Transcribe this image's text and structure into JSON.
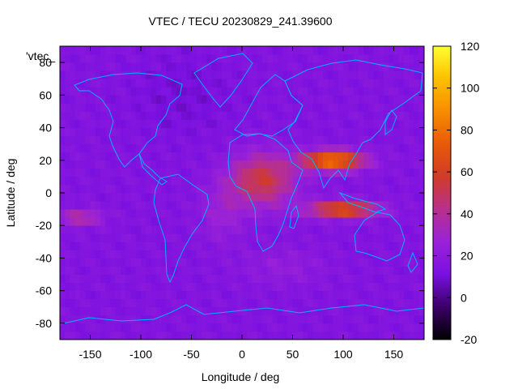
{
  "chart_data": {
    "type": "heatmap",
    "title": "VTEC / TECU 20230829_241.39600",
    "xlabel": "Longitude / deg",
    "ylabel": "Latitude / deg",
    "series_label": "'vtec_",
    "xlim": [
      -180,
      180
    ],
    "ylim": [
      -90,
      90
    ],
    "x_ticks": [
      -150,
      -100,
      -50,
      0,
      50,
      100,
      150
    ],
    "y_ticks": [
      -80,
      -60,
      -40,
      -20,
      0,
      20,
      40,
      60,
      80
    ],
    "colorbar": {
      "range": [
        -20,
        120
      ],
      "ticks": [
        -20,
        0,
        20,
        40,
        60,
        80,
        100,
        120
      ],
      "palette": [
        "#000000",
        "#3a0066",
        "#7a10e0",
        "#9a22d8",
        "#b8308c",
        "#d03c28",
        "#e85a08",
        "#f88c00",
        "#fcc000",
        "#ffff30"
      ]
    },
    "grid": false,
    "features": [
      {
        "name": "background",
        "value": 15
      },
      {
        "name": "equatorial-anomaly-africa",
        "lon": 20,
        "lat": 8,
        "value": 55
      },
      {
        "name": "northern-crest-asia",
        "lon": 90,
        "lat": 20,
        "value": 85
      },
      {
        "name": "southern-crest-indonesia",
        "lon": 100,
        "lat": -10,
        "value": 72
      },
      {
        "name": "south-atlantic-region",
        "lon": -20,
        "lat": -12,
        "value": 32
      },
      {
        "name": "east-pacific-band",
        "lon": -160,
        "lat": -15,
        "value": 40
      }
    ],
    "overlay": "coastlines",
    "coastline_color": "#00b4ff"
  }
}
